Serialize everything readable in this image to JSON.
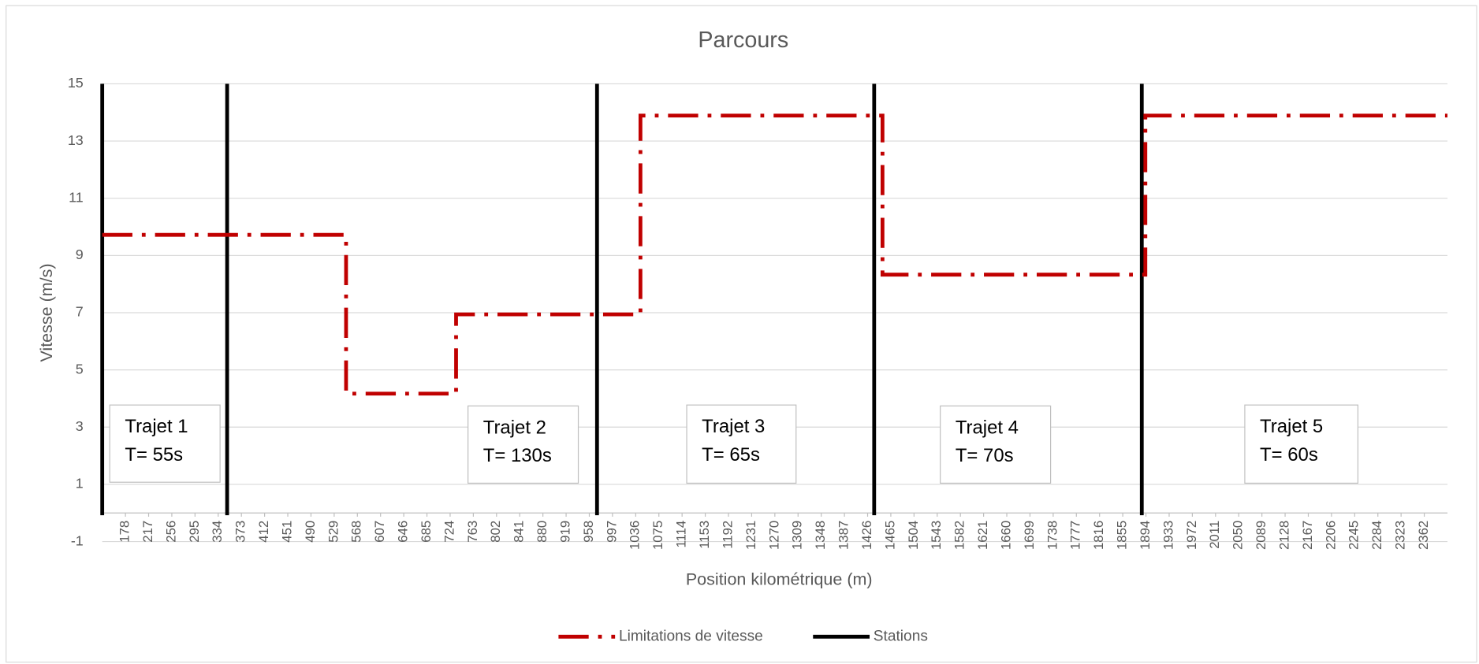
{
  "chart_data": {
    "type": "line",
    "title": "Parcours",
    "x_label": "Position kilométrique (m)",
    "y_label": "Vitesse (m/s)",
    "xlim": [
      139,
      2401
    ],
    "xticks": [
      178,
      217,
      256,
      295,
      334,
      373,
      412,
      451,
      490,
      529,
      568,
      607,
      646,
      685,
      724,
      763,
      802,
      841,
      880,
      919,
      958,
      997,
      1036,
      1075,
      1114,
      1153,
      1192,
      1231,
      1270,
      1309,
      1348,
      1387,
      1426,
      1465,
      1504,
      1543,
      1582,
      1621,
      1660,
      1699,
      1738,
      1777,
      1816,
      1855,
      1894,
      1933,
      1972,
      2011,
      2050,
      2089,
      2128,
      2167,
      2206,
      2245,
      2284,
      2323,
      2362
    ],
    "ylim": [
      -1,
      15
    ],
    "yticks": [
      -1,
      1,
      3,
      5,
      7,
      9,
      11,
      13,
      15
    ],
    "grid": true,
    "legend": "bottom",
    "series": [
      {
        "name": "Limitations de vitesse",
        "color": "#c00000",
        "x": [
          139,
          549,
          549,
          734,
          734,
          1044,
          1044,
          1451,
          1451,
          1893,
          1893,
          2401
        ],
        "values": [
          9.72,
          9.72,
          4.17,
          4.17,
          6.94,
          6.94,
          13.89,
          13.89,
          8.33,
          8.33,
          13.89,
          13.89
        ]
      },
      {
        "name": "Stations",
        "color": "#000000",
        "x": [
          139,
          349,
          971,
          1437,
          1887
        ]
      }
    ],
    "annotations": [
      [
        "Trajet 1",
        "T= 55s"
      ],
      [
        "Trajet 2",
        "T= 130s"
      ],
      [
        "Trajet 3",
        "T= 65s"
      ],
      [
        "Trajet 4",
        "T= 70s"
      ],
      [
        "Trajet 5",
        "T= 60s"
      ]
    ]
  }
}
